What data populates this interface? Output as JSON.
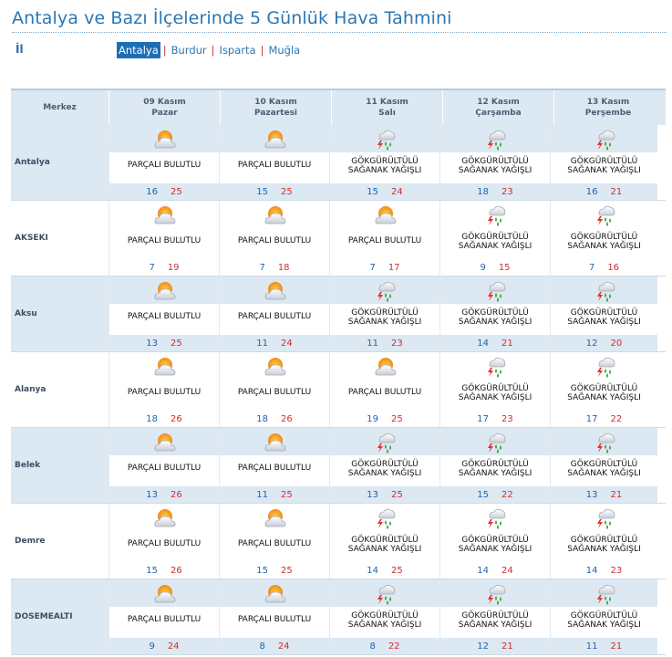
{
  "page": {
    "title": "Antalya ve Bazı İlçelerinde 5 Günlük Hava Tahmini",
    "il_label": "İl"
  },
  "cities": [
    {
      "label": "Antalya",
      "active": true
    },
    {
      "label": "Burdur",
      "active": false
    },
    {
      "label": "Isparta",
      "active": false
    },
    {
      "label": "Muğla",
      "active": false
    }
  ],
  "table": {
    "merkez_label": "Merkez",
    "days": [
      {
        "date": "09 Kasım",
        "weekday": "Pazar"
      },
      {
        "date": "10 Kasım",
        "weekday": "Pazartesi"
      },
      {
        "date": "11 Kasım",
        "weekday": "Salı"
      },
      {
        "date": "12 Kasım",
        "weekday": "Çarşamba"
      },
      {
        "date": "13 Kasım",
        "weekday": "Perşembe"
      }
    ],
    "rows": [
      {
        "name": "Antalya",
        "forecasts": [
          {
            "icon": "partly-cloudy-icon",
            "desc1": "PARÇALI BULUTLU",
            "desc2": "",
            "min": "16",
            "max": "25"
          },
          {
            "icon": "partly-cloudy-icon",
            "desc1": "PARÇALI BULUTLU",
            "desc2": "",
            "min": "15",
            "max": "25"
          },
          {
            "icon": "thunder-shower-icon",
            "desc1": "GÖKGÜRÜLTÜLÜ",
            "desc2": "SAĞANAK YAĞIŞLI",
            "min": "15",
            "max": "24"
          },
          {
            "icon": "thunder-shower-icon",
            "desc1": "GÖKGÜRÜLTÜLÜ",
            "desc2": "SAĞANAK YAĞIŞLI",
            "min": "18",
            "max": "23"
          },
          {
            "icon": "thunder-shower-icon",
            "desc1": "GÖKGÜRÜLTÜLÜ",
            "desc2": "SAĞANAK YAĞIŞLI",
            "min": "16",
            "max": "21"
          }
        ]
      },
      {
        "name": "AKSEKI",
        "forecasts": [
          {
            "icon": "partly-cloudy-icon",
            "desc1": "PARÇALI BULUTLU",
            "desc2": "",
            "min": "7",
            "max": "19"
          },
          {
            "icon": "partly-cloudy-icon",
            "desc1": "PARÇALI BULUTLU",
            "desc2": "",
            "min": "7",
            "max": "18"
          },
          {
            "icon": "partly-cloudy-icon",
            "desc1": "PARÇALI BULUTLU",
            "desc2": "",
            "min": "7",
            "max": "17"
          },
          {
            "icon": "thunder-shower-icon",
            "desc1": "GÖKGÜRÜLTÜLÜ",
            "desc2": "SAĞANAK YAĞIŞLI",
            "min": "9",
            "max": "15"
          },
          {
            "icon": "thunder-shower-icon",
            "desc1": "GÖKGÜRÜLTÜLÜ",
            "desc2": "SAĞANAK YAĞIŞLI",
            "min": "7",
            "max": "16"
          }
        ]
      },
      {
        "name": "Aksu",
        "forecasts": [
          {
            "icon": "partly-cloudy-icon",
            "desc1": "PARÇALI BULUTLU",
            "desc2": "",
            "min": "13",
            "max": "25"
          },
          {
            "icon": "partly-cloudy-icon",
            "desc1": "PARÇALI BULUTLU",
            "desc2": "",
            "min": "11",
            "max": "24"
          },
          {
            "icon": "thunder-shower-icon",
            "desc1": "GÖKGÜRÜLTÜLÜ",
            "desc2": "SAĞANAK YAĞIŞLI",
            "min": "11",
            "max": "23"
          },
          {
            "icon": "thunder-shower-icon",
            "desc1": "GÖKGÜRÜLTÜLÜ",
            "desc2": "SAĞANAK YAĞIŞLI",
            "min": "14",
            "max": "21"
          },
          {
            "icon": "thunder-shower-icon",
            "desc1": "GÖKGÜRÜLTÜLÜ",
            "desc2": "SAĞANAK YAĞIŞLI",
            "min": "12",
            "max": "20"
          }
        ]
      },
      {
        "name": "Alanya",
        "forecasts": [
          {
            "icon": "partly-cloudy-icon",
            "desc1": "PARÇALI BULUTLU",
            "desc2": "",
            "min": "18",
            "max": "26"
          },
          {
            "icon": "partly-cloudy-icon",
            "desc1": "PARÇALI BULUTLU",
            "desc2": "",
            "min": "18",
            "max": "26"
          },
          {
            "icon": "partly-cloudy-icon",
            "desc1": "PARÇALI BULUTLU",
            "desc2": "",
            "min": "19",
            "max": "25"
          },
          {
            "icon": "thunder-shower-icon",
            "desc1": "GÖKGÜRÜLTÜLÜ",
            "desc2": "SAĞANAK YAĞIŞLI",
            "min": "17",
            "max": "23"
          },
          {
            "icon": "thunder-shower-icon",
            "desc1": "GÖKGÜRÜLTÜLÜ",
            "desc2": "SAĞANAK YAĞIŞLI",
            "min": "17",
            "max": "22"
          }
        ]
      },
      {
        "name": "Belek",
        "forecasts": [
          {
            "icon": "partly-cloudy-icon",
            "desc1": "PARÇALI BULUTLU",
            "desc2": "",
            "min": "13",
            "max": "26"
          },
          {
            "icon": "partly-cloudy-icon",
            "desc1": "PARÇALI BULUTLU",
            "desc2": "",
            "min": "11",
            "max": "25"
          },
          {
            "icon": "thunder-shower-icon",
            "desc1": "GÖKGÜRÜLTÜLÜ",
            "desc2": "SAĞANAK YAĞIŞLI",
            "min": "13",
            "max": "25"
          },
          {
            "icon": "thunder-shower-icon",
            "desc1": "GÖKGÜRÜLTÜLÜ",
            "desc2": "SAĞANAK YAĞIŞLI",
            "min": "15",
            "max": "22"
          },
          {
            "icon": "thunder-shower-icon",
            "desc1": "GÖKGÜRÜLTÜLÜ",
            "desc2": "SAĞANAK YAĞIŞLI",
            "min": "13",
            "max": "21"
          }
        ]
      },
      {
        "name": "Demre",
        "forecasts": [
          {
            "icon": "partly-cloudy-icon",
            "desc1": "PARÇALI BULUTLU",
            "desc2": "",
            "min": "15",
            "max": "26"
          },
          {
            "icon": "partly-cloudy-icon",
            "desc1": "PARÇALI BULUTLU",
            "desc2": "",
            "min": "15",
            "max": "25"
          },
          {
            "icon": "thunder-shower-icon",
            "desc1": "GÖKGÜRÜLTÜLÜ",
            "desc2": "SAĞANAK YAĞIŞLI",
            "min": "14",
            "max": "25"
          },
          {
            "icon": "thunder-shower-icon",
            "desc1": "GÖKGÜRÜLTÜLÜ",
            "desc2": "SAĞANAK YAĞIŞLI",
            "min": "14",
            "max": "24"
          },
          {
            "icon": "thunder-shower-icon",
            "desc1": "GÖKGÜRÜLTÜLÜ",
            "desc2": "SAĞANAK YAĞIŞLI",
            "min": "14",
            "max": "23"
          }
        ]
      },
      {
        "name": "DOSEMEALTI",
        "forecasts": [
          {
            "icon": "partly-cloudy-icon",
            "desc1": "PARÇALI BULUTLU",
            "desc2": "",
            "min": "9",
            "max": "24"
          },
          {
            "icon": "partly-cloudy-icon",
            "desc1": "PARÇALI BULUTLU",
            "desc2": "",
            "min": "8",
            "max": "24"
          },
          {
            "icon": "thunder-shower-icon",
            "desc1": "GÖKGÜRÜLTÜLÜ",
            "desc2": "SAĞANAK YAĞIŞLI",
            "min": "8",
            "max": "22"
          },
          {
            "icon": "thunder-shower-icon",
            "desc1": "GÖKGÜRÜLTÜLÜ",
            "desc2": "SAĞANAK YAĞIŞLI",
            "min": "12",
            "max": "21"
          },
          {
            "icon": "thunder-shower-icon",
            "desc1": "GÖKGÜRÜLTÜLÜ",
            "desc2": "SAĞANAK YAĞIŞLI",
            "min": "11",
            "max": "21"
          }
        ]
      }
    ]
  },
  "colors": {
    "title": "#2b77b3",
    "min_temp": "#1e64b0",
    "max_temp": "#d22d2d",
    "header_bg": "#dce8f2",
    "active_tab": "#1b6fb5"
  }
}
